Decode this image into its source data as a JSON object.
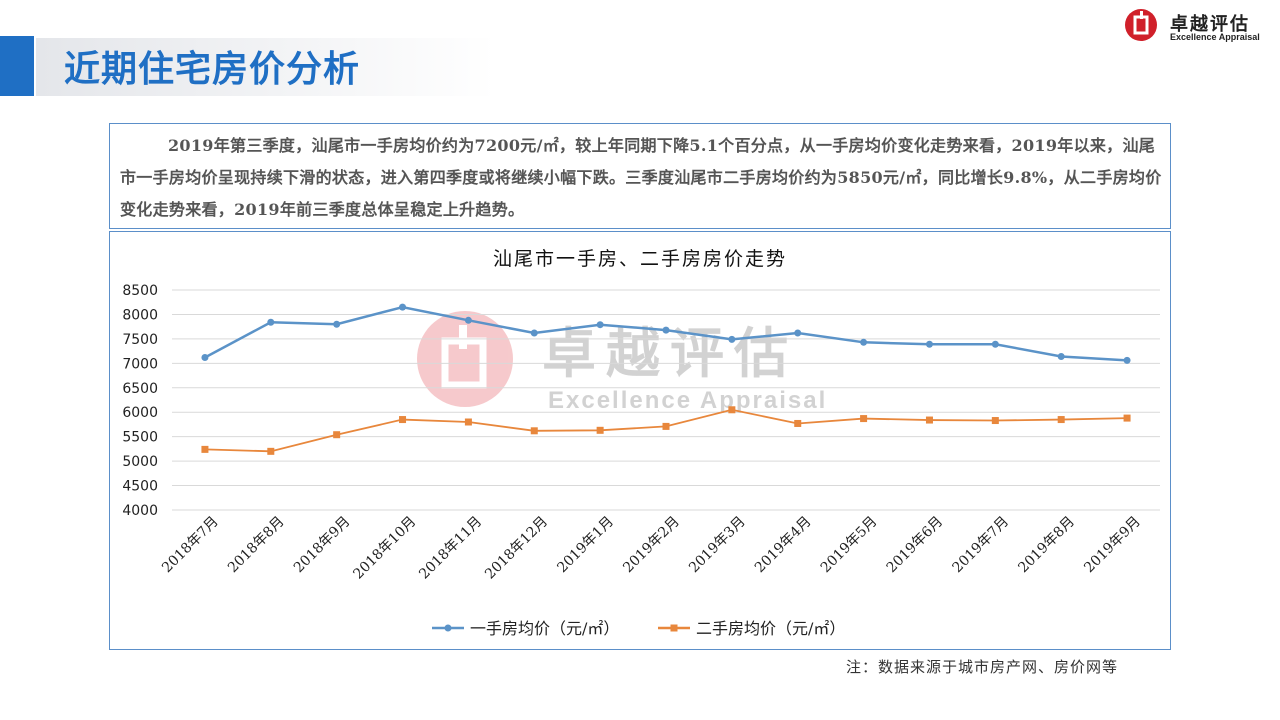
{
  "header": {
    "title": "近期住宅房价分析",
    "logo_cn": "卓越评估",
    "logo_en": "Excellence Appraisal"
  },
  "summary": "2019年第三季度，汕尾市一手房均价约为7200元/㎡，较上年同期下降5.1个百分点，从一手房均价变化走势来看，2019年以来，汕尾市一手房均价呈现持续下滑的状态，进入第四季度或将继续小幅下跌。三季度汕尾市二手房均价约为5850元/㎡，同比增长9.8%，从二手房均价变化走势来看，2019年前三季度总体呈稳定上升趋势。",
  "watermark": {
    "cn": "卓越评估",
    "en": "Excellence Appraisal"
  },
  "note": "注：数据来源于城市房产网、房价网等",
  "colors": {
    "accent": "#1f6fc4",
    "series1": "#5b93c8",
    "series2": "#e8873c",
    "logo_red": "#d0202a"
  },
  "chart_data": {
    "type": "line",
    "title": "汕尾市一手房、二手房房价走势",
    "categories": [
      "2018年7月",
      "2018年8月",
      "2018年9月",
      "2018年10月",
      "2018年11月",
      "2018年12月",
      "2019年1月",
      "2019年2月",
      "2019年3月",
      "2019年4月",
      "2019年5月",
      "2019年6月",
      "2019年7月",
      "2019年8月",
      "2019年9月"
    ],
    "ylim": [
      4000,
      8500
    ],
    "yticks": [
      4000,
      4500,
      5000,
      5500,
      6000,
      6500,
      7000,
      7500,
      8000,
      8500
    ],
    "grid": true,
    "legend": "bottom",
    "series": [
      {
        "name": "一手房均价（元/㎡）",
        "marker": "circle",
        "values": [
          7120,
          7840,
          7800,
          8150,
          7880,
          7620,
          7790,
          7680,
          7490,
          7620,
          7430,
          7390,
          7390,
          7140,
          7060
        ]
      },
      {
        "name": "二手房均价（元/㎡）",
        "marker": "square",
        "values": [
          5240,
          5200,
          5540,
          5850,
          5800,
          5620,
          5630,
          5710,
          6050,
          5770,
          5870,
          5840,
          5830,
          5850,
          5880
        ]
      }
    ]
  }
}
